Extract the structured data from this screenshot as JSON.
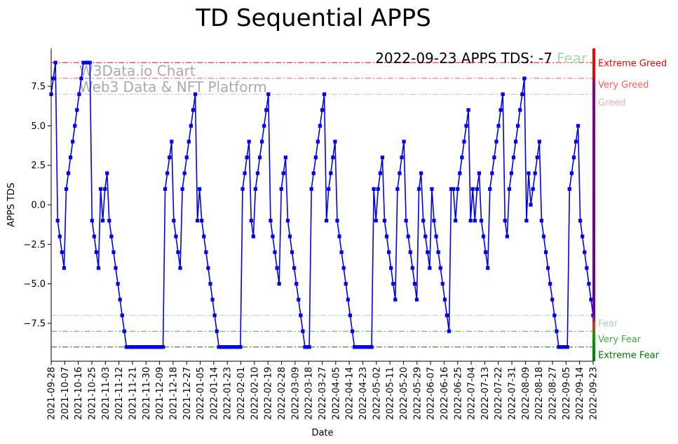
{
  "chart_data": {
    "type": "line",
    "title": "TD Sequential APPS",
    "xlabel": "Date",
    "ylabel": "APPS TDS",
    "ylim": [
      -9.9,
      9.9
    ],
    "yticks": [
      -7.5,
      -5.0,
      -2.5,
      0.0,
      2.5,
      5.0,
      7.5
    ],
    "ytick_labels": [
      "−7.5",
      "−5.0",
      "−2.5",
      "0.0",
      "2.5",
      "5.0",
      "7.5"
    ],
    "start_date": "2021-09-28",
    "end_date": "2022-09-23",
    "xticks": [
      "2021-09-28",
      "2021-10-07",
      "2021-10-16",
      "2021-10-25",
      "2021-11-03",
      "2021-11-12",
      "2021-11-21",
      "2021-11-30",
      "2021-12-09",
      "2021-12-18",
      "2021-12-27",
      "2022-01-05",
      "2022-01-14",
      "2022-01-23",
      "2022-02-01",
      "2022-02-10",
      "2022-02-19",
      "2022-02-28",
      "2022-03-09",
      "2022-03-18",
      "2022-03-27",
      "2022-04-05",
      "2022-04-14",
      "2022-04-23",
      "2022-05-02",
      "2022-05-11",
      "2022-05-20",
      "2022-05-29",
      "2022-06-07",
      "2022-06-16",
      "2022-06-25",
      "2022-07-04",
      "2022-07-13",
      "2022-07-22",
      "2022-07-31",
      "2022-08-09",
      "2022-08-18",
      "2022-08-27",
      "2022-09-05",
      "2022-09-14",
      "2022-09-23"
    ],
    "series": [
      {
        "name": "APPS TDS",
        "color": "#0000ee",
        "marker": "square",
        "values": [
          7,
          8,
          9,
          -1,
          -2,
          -3,
          -4,
          1,
          2,
          3,
          4,
          5,
          6,
          7,
          8,
          9,
          9,
          9,
          9,
          -1,
          -2,
          -3,
          -4,
          1,
          -1,
          1,
          2,
          -1,
          -2,
          -3,
          -4,
          -5,
          -6,
          -7,
          -8,
          -9,
          -9,
          -9,
          -9,
          -9,
          -9,
          -9,
          -9,
          -9,
          -9,
          -9,
          -9,
          -9,
          -9,
          -9,
          -9,
          -9,
          -9,
          1,
          2,
          3,
          4,
          -1,
          -2,
          -3,
          -4,
          1,
          2,
          3,
          4,
          5,
          6,
          7,
          -1,
          1,
          -1,
          -2,
          -3,
          -4,
          -5,
          -6,
          -7,
          -8,
          -9,
          -9,
          -9,
          -9,
          -9,
          -9,
          -9,
          -9,
          -9,
          -9,
          -9,
          1,
          2,
          3,
          4,
          -1,
          -2,
          1,
          2,
          3,
          4,
          5,
          6,
          7,
          -1,
          -2,
          -3,
          -4,
          -5,
          1,
          2,
          3,
          -1,
          -2,
          -3,
          -4,
          -5,
          -6,
          -7,
          -8,
          -9,
          -9,
          -9,
          1,
          2,
          3,
          4,
          5,
          6,
          7,
          -1,
          1,
          2,
          3,
          4,
          -1,
          -2,
          -3,
          -4,
          -5,
          -6,
          -7,
          -8,
          -9,
          -9,
          -9,
          -9,
          -9,
          -9,
          -9,
          -9,
          -9,
          1,
          -1,
          1,
          2,
          3,
          -1,
          -2,
          -3,
          -4,
          -5,
          -6,
          1,
          2,
          3,
          4,
          -1,
          -2,
          -3,
          -4,
          -5,
          -6,
          1,
          2,
          -1,
          -2,
          -3,
          -4,
          1,
          -1,
          -2,
          -3,
          -4,
          -5,
          -6,
          -7,
          -8,
          1,
          1,
          -1,
          1,
          2,
          3,
          4,
          5,
          6,
          -1,
          1,
          -1,
          1,
          2,
          -1,
          -2,
          -3,
          -4,
          1,
          2,
          3,
          4,
          5,
          6,
          7,
          -1,
          -2,
          1,
          2,
          3,
          4,
          5,
          6,
          7,
          8,
          -1,
          2,
          0,
          1,
          2,
          3,
          4,
          -1,
          -2,
          -3,
          -4,
          -5,
          -6,
          -7,
          -8,
          -9,
          -9,
          -9,
          -9,
          -9,
          1,
          2,
          3,
          4,
          5,
          -1,
          -2,
          -3,
          -4,
          -5,
          -6,
          -7
        ]
      }
    ],
    "thresholds": [
      {
        "label": "Extreme Greed",
        "value": 9,
        "color": "#ff0000"
      },
      {
        "label": "Very Greed",
        "value": 8,
        "color": "#ff5c5c"
      },
      {
        "label": "Greed",
        "value": 7,
        "color": "#ffaaaa"
      },
      {
        "label": "Fear",
        "value": -7,
        "color": "#a6d8a6"
      },
      {
        "label": "Very Fear",
        "value": -8,
        "color": "#3fae3f"
      },
      {
        "label": "Extreme Fear",
        "value": -9,
        "color": "#007a00"
      }
    ],
    "annotation": {
      "text": "2022-09-23 APPS TDS: -7",
      "sentiment": "Fear",
      "sentiment_color": "#a6d8a6"
    },
    "watermark": [
      "W3Data.io Chart",
      "Web3 Data & NFT Platform"
    ],
    "colorbar": {
      "top": "#ff0000",
      "middle": "#7a0099",
      "bottom": "#007a00"
    }
  }
}
